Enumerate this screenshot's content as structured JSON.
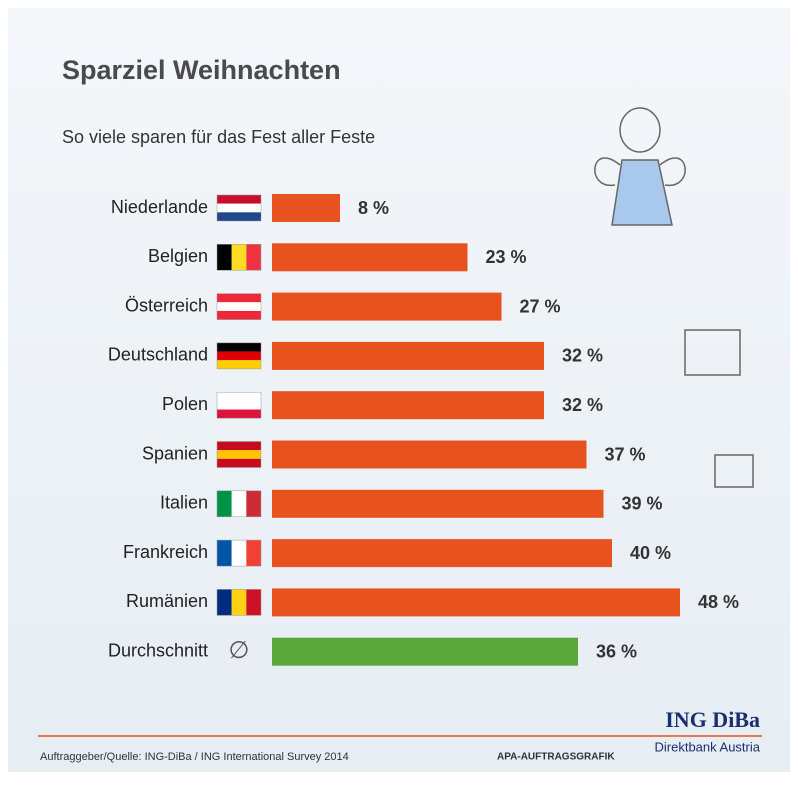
{
  "chart_data": {
    "type": "bar",
    "orientation": "horizontal",
    "title": "Sparziel Weihnachten",
    "subtitle": "So viele sparen für das Fest aller Feste",
    "categories": [
      "Niederlande",
      "Belgien",
      "Österreich",
      "Deutschland",
      "Polen",
      "Spanien",
      "Italien",
      "Frankreich",
      "Rumänien",
      "Durchschnitt"
    ],
    "values": [
      8,
      23,
      27,
      32,
      32,
      37,
      39,
      40,
      48,
      36
    ],
    "value_labels": [
      "8 %",
      "23 %",
      "27 %",
      "32 %",
      "32 %",
      "37 %",
      "39 %",
      "40 %",
      "48 %",
      "36 %"
    ],
    "colors": [
      "#e8521f",
      "#e8521f",
      "#e8521f",
      "#e8521f",
      "#e8521f",
      "#e8521f",
      "#e8521f",
      "#e8521f",
      "#e8521f",
      "#5aa83c"
    ],
    "average_symbol": "∅",
    "source": "Auftraggeber/Quelle: ING-DiBa / ING International Survey 2014",
    "credit": "APA-AUFTRAGSGRAFIK",
    "brand": "ING DiBa",
    "brand_subtitle": "Direktbank Austria"
  }
}
